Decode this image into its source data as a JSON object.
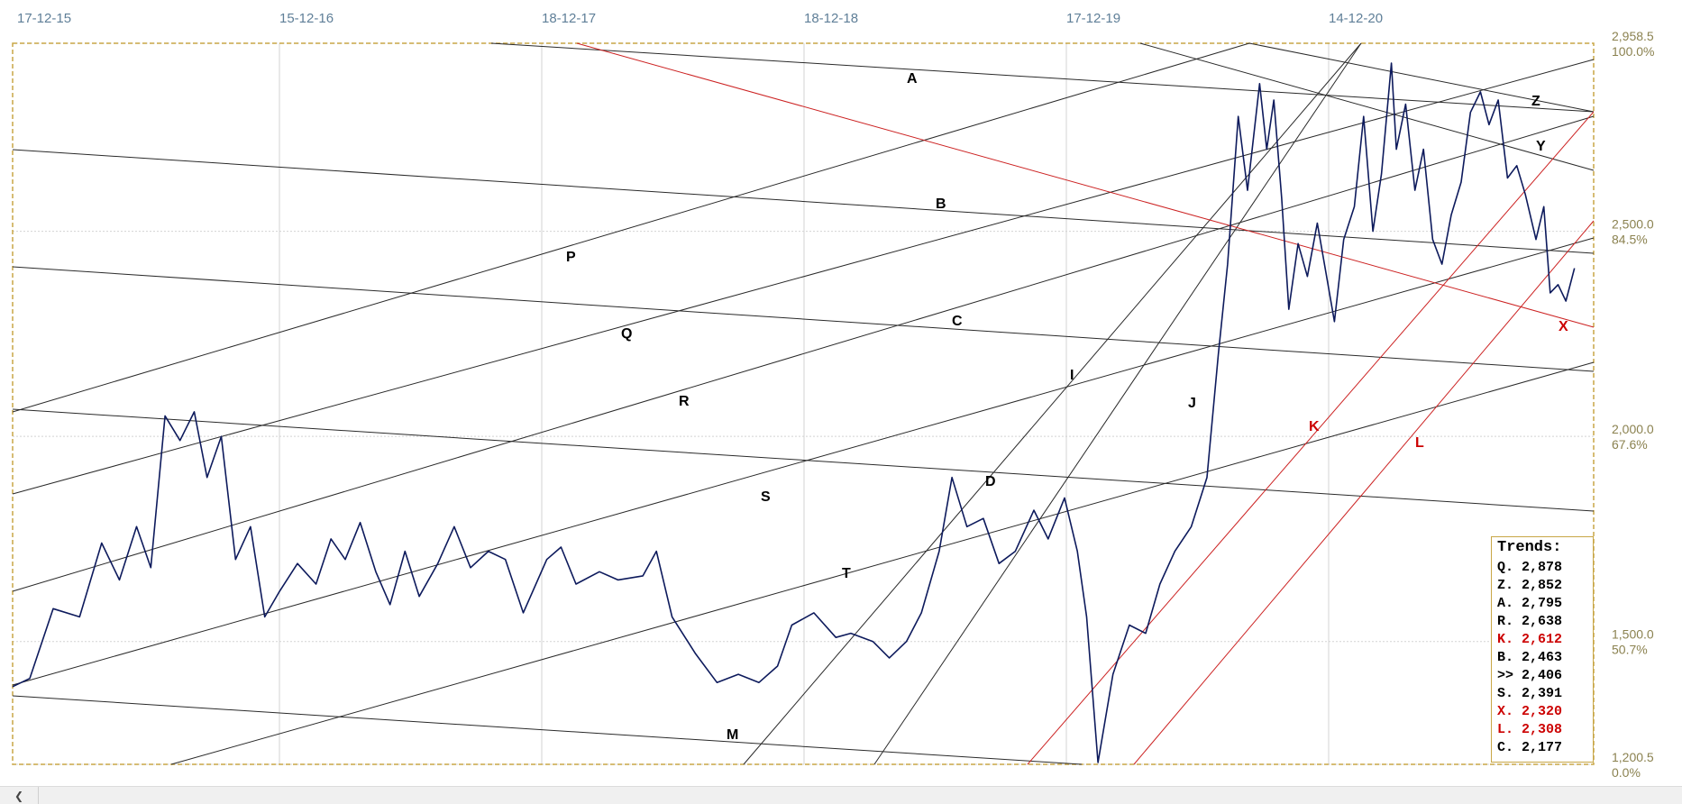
{
  "chart_data": {
    "type": "line",
    "x_ticks": [
      "17-12-15",
      "15-12-16",
      "18-12-17",
      "18-12-18",
      "17-12-19",
      "14-12-20"
    ],
    "y_levels": [
      {
        "value": "2,958.5",
        "pct": "100.0%"
      },
      {
        "value": "2,500.0",
        "pct": "84.5%"
      },
      {
        "value": "2,000.0",
        "pct": "67.6%"
      },
      {
        "value": "1,500.0",
        "pct": "50.7%"
      },
      {
        "value": "1,200.5",
        "pct": "0.0%"
      }
    ],
    "ylim": [
      1200.5,
      2958.5
    ],
    "grid": true,
    "series": [
      {
        "color": "#0d1a5c",
        "points": [
          [
            "2015-12-17",
            1390
          ],
          [
            "2016-01-10",
            1410
          ],
          [
            "2016-02-12",
            1580
          ],
          [
            "2016-03-20",
            1560
          ],
          [
            "2016-04-20",
            1740
          ],
          [
            "2016-05-15",
            1650
          ],
          [
            "2016-06-08",
            1780
          ],
          [
            "2016-06-28",
            1680
          ],
          [
            "2016-07-18",
            2050
          ],
          [
            "2016-08-08",
            1990
          ],
          [
            "2016-08-28",
            2060
          ],
          [
            "2016-09-15",
            1900
          ],
          [
            "2016-10-05",
            2000
          ],
          [
            "2016-10-25",
            1700
          ],
          [
            "2016-11-15",
            1780
          ],
          [
            "2016-12-05",
            1560
          ],
          [
            "2016-12-25",
            1620
          ],
          [
            "2017-01-20",
            1690
          ],
          [
            "2017-02-15",
            1640
          ],
          [
            "2017-03-08",
            1750
          ],
          [
            "2017-03-28",
            1700
          ],
          [
            "2017-04-18",
            1790
          ],
          [
            "2017-05-10",
            1670
          ],
          [
            "2017-05-30",
            1590
          ],
          [
            "2017-06-20",
            1720
          ],
          [
            "2017-07-10",
            1610
          ],
          [
            "2017-08-05",
            1690
          ],
          [
            "2017-08-28",
            1780
          ],
          [
            "2017-09-20",
            1680
          ],
          [
            "2017-10-15",
            1720
          ],
          [
            "2017-11-08",
            1700
          ],
          [
            "2017-12-03",
            1570
          ],
          [
            "2018-01-05",
            1700
          ],
          [
            "2018-01-25",
            1730
          ],
          [
            "2018-02-15",
            1640
          ],
          [
            "2018-03-20",
            1670
          ],
          [
            "2018-04-15",
            1650
          ],
          [
            "2018-05-20",
            1660
          ],
          [
            "2018-06-08",
            1720
          ],
          [
            "2018-06-30",
            1560
          ],
          [
            "2018-08-02",
            1470
          ],
          [
            "2018-09-01",
            1400
          ],
          [
            "2018-10-01",
            1420
          ],
          [
            "2018-10-30",
            1400
          ],
          [
            "2018-11-25",
            1440
          ],
          [
            "2018-12-15",
            1540
          ],
          [
            "2019-01-15",
            1570
          ],
          [
            "2019-02-15",
            1510
          ],
          [
            "2019-03-08",
            1520
          ],
          [
            "2019-04-08",
            1500
          ],
          [
            "2019-05-01",
            1460
          ],
          [
            "2019-05-25",
            1500
          ],
          [
            "2019-06-15",
            1570
          ],
          [
            "2019-07-10",
            1720
          ],
          [
            "2019-07-28",
            1900
          ],
          [
            "2019-08-18",
            1780
          ],
          [
            "2019-09-10",
            1800
          ],
          [
            "2019-10-02",
            1690
          ],
          [
            "2019-10-25",
            1720
          ],
          [
            "2019-11-20",
            1820
          ],
          [
            "2019-12-10",
            1750
          ],
          [
            "2020-01-02",
            1850
          ],
          [
            "2020-01-20",
            1720
          ],
          [
            "2020-02-02",
            1560
          ],
          [
            "2020-02-18",
            1205
          ],
          [
            "2020-03-10",
            1420
          ],
          [
            "2020-04-02",
            1540
          ],
          [
            "2020-04-25",
            1520
          ],
          [
            "2020-05-15",
            1640
          ],
          [
            "2020-06-05",
            1720
          ],
          [
            "2020-06-28",
            1780
          ],
          [
            "2020-07-20",
            1900
          ],
          [
            "2020-08-05",
            2200
          ],
          [
            "2020-08-18",
            2420
          ],
          [
            "2020-09-02",
            2780
          ],
          [
            "2020-09-15",
            2600
          ],
          [
            "2020-10-02",
            2860
          ],
          [
            "2020-10-12",
            2700
          ],
          [
            "2020-10-22",
            2820
          ],
          [
            "2020-11-02",
            2580
          ],
          [
            "2020-11-12",
            2310
          ],
          [
            "2020-11-25",
            2470
          ],
          [
            "2020-12-08",
            2390
          ],
          [
            "2020-12-22",
            2520
          ],
          [
            "2021-01-05",
            2380
          ],
          [
            "2021-01-15",
            2280
          ],
          [
            "2021-01-28",
            2480
          ],
          [
            "2021-02-12",
            2560
          ],
          [
            "2021-02-25",
            2780
          ],
          [
            "2021-03-10",
            2500
          ],
          [
            "2021-03-22",
            2640
          ],
          [
            "2021-04-05",
            2910
          ],
          [
            "2021-04-12",
            2700
          ],
          [
            "2021-04-25",
            2810
          ],
          [
            "2021-05-08",
            2600
          ],
          [
            "2021-05-20",
            2700
          ],
          [
            "2021-06-02",
            2480
          ],
          [
            "2021-06-15",
            2420
          ],
          [
            "2021-06-28",
            2540
          ],
          [
            "2021-07-12",
            2620
          ],
          [
            "2021-07-25",
            2790
          ],
          [
            "2021-08-08",
            2840
          ],
          [
            "2021-08-20",
            2760
          ],
          [
            "2021-09-02",
            2820
          ],
          [
            "2021-09-15",
            2630
          ],
          [
            "2021-09-28",
            2660
          ],
          [
            "2021-10-10",
            2590
          ],
          [
            "2021-10-25",
            2480
          ],
          [
            "2021-11-05",
            2560
          ],
          [
            "2021-11-14",
            2350
          ],
          [
            "2021-11-25",
            2370
          ],
          [
            "2021-12-06",
            2330
          ],
          [
            "2021-12-18",
            2410
          ]
        ]
      }
    ],
    "trend_labels": [
      {
        "text": "A",
        "color": "#000000"
      },
      {
        "text": "B",
        "color": "#000000"
      },
      {
        "text": "C",
        "color": "#000000"
      },
      {
        "text": "D",
        "color": "#000000"
      },
      {
        "text": "I",
        "color": "#000000"
      },
      {
        "text": "J",
        "color": "#000000"
      },
      {
        "text": "K",
        "color": "#cc0000"
      },
      {
        "text": "L",
        "color": "#cc0000"
      },
      {
        "text": "M",
        "color": "#000000"
      },
      {
        "text": "P",
        "color": "#000000"
      },
      {
        "text": "Q",
        "color": "#000000"
      },
      {
        "text": "R",
        "color": "#000000"
      },
      {
        "text": "S",
        "color": "#000000"
      },
      {
        "text": "T",
        "color": "#000000"
      },
      {
        "text": "X",
        "color": "#cc0000"
      },
      {
        "text": "Y",
        "color": "#000000"
      },
      {
        "text": "Z",
        "color": "#000000"
      }
    ]
  },
  "trends_panel": {
    "title": "Trends:",
    "rows": [
      {
        "label": "Q.",
        "value": "2,878",
        "color": "#000000"
      },
      {
        "label": "Z.",
        "value": "2,852",
        "color": "#000000"
      },
      {
        "label": "A.",
        "value": "2,795",
        "color": "#000000"
      },
      {
        "label": "R.",
        "value": "2,638",
        "color": "#000000"
      },
      {
        "label": "K.",
        "value": "2,612",
        "color": "#cc0000"
      },
      {
        "label": "B.",
        "value": "2,463",
        "color": "#000000"
      },
      {
        "label": ">>",
        "value": "2,406",
        "color": "#000000"
      },
      {
        "label": "S.",
        "value": "2,391",
        "color": "#000000"
      },
      {
        "label": "X.",
        "value": "2,320",
        "color": "#cc0000"
      },
      {
        "label": "L.",
        "value": "2,308",
        "color": "#cc0000"
      },
      {
        "label": "C.",
        "value": "2,177",
        "color": "#000000"
      }
    ]
  },
  "scrollbar": {
    "left_arrow_icon": "chevron-left-icon"
  }
}
